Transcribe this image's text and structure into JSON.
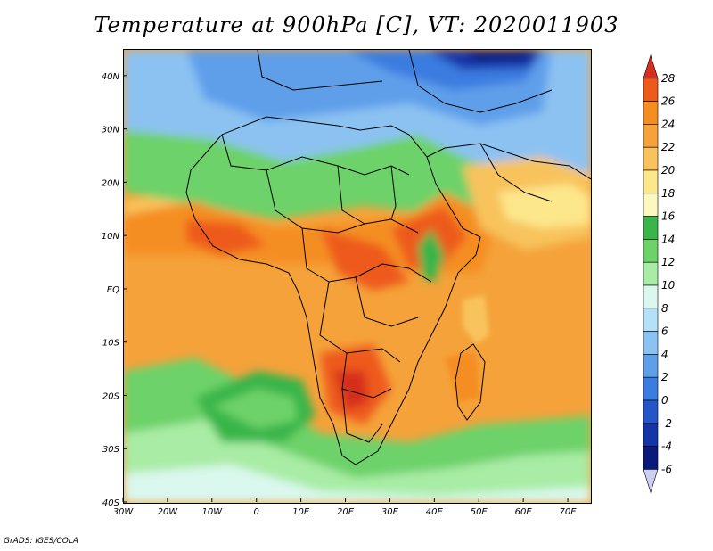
{
  "title": "Temperature at 900hPa [C], VT: 2020011903",
  "credit": "GrADS: IGES/COLA",
  "map": {
    "lon_range": [
      -30,
      75
    ],
    "lat_range": [
      -40,
      45
    ],
    "lon_ticks": [
      {
        "v": -30,
        "label": "30W"
      },
      {
        "v": -20,
        "label": "20W"
      },
      {
        "v": -10,
        "label": "10W"
      },
      {
        "v": 0,
        "label": "0"
      },
      {
        "v": 10,
        "label": "10E"
      },
      {
        "v": 20,
        "label": "20E"
      },
      {
        "v": 30,
        "label": "30E"
      },
      {
        "v": 40,
        "label": "40E"
      },
      {
        "v": 50,
        "label": "50E"
      },
      {
        "v": 60,
        "label": "60E"
      },
      {
        "v": 70,
        "label": "70E"
      }
    ],
    "lat_ticks": [
      {
        "v": 40,
        "label": "40N"
      },
      {
        "v": 30,
        "label": "30N"
      },
      {
        "v": 20,
        "label": "20N"
      },
      {
        "v": 10,
        "label": "10N"
      },
      {
        "v": 0,
        "label": "EQ"
      },
      {
        "v": -10,
        "label": "10S"
      },
      {
        "v": -20,
        "label": "20S"
      },
      {
        "v": -30,
        "label": "30S"
      },
      {
        "v": -40,
        "label": "40S"
      }
    ],
    "background_color": "#f5a23a"
  },
  "colorbar": {
    "labels": [
      "28",
      "26",
      "24",
      "22",
      "20",
      "18",
      "16",
      "14",
      "12",
      "10",
      "8",
      "6",
      "4",
      "2",
      "0",
      "-2",
      "-4",
      "-6"
    ],
    "colors": [
      "#d62e1f",
      "#ee5a1c",
      "#f58e20",
      "#f5a23a",
      "#f8c35c",
      "#fde78b",
      "#fdf8bf",
      "#39b54a",
      "#6dd269",
      "#a9eca5",
      "#daf8ee",
      "#b4e0f8",
      "#8cc2f2",
      "#5e9fea",
      "#3a7ce0",
      "#2555c8",
      "#1335a8",
      "#0a1a7a",
      "#cccff2"
    ]
  }
}
